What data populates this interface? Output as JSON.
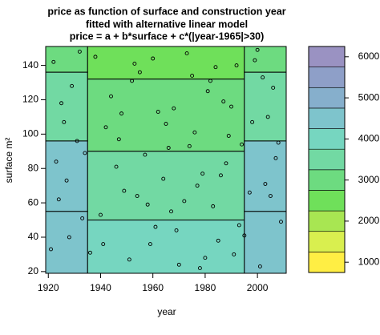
{
  "chart_data": {
    "type": "filled-contour",
    "title": "price as function of surface and construction year",
    "subtitle": "fitted with alternative linear model",
    "formula": "price = a + b*surface + c*(|year-1965|>30)",
    "x_label": "year",
    "y_label": "surface m²",
    "xlim": [
      1919,
      2011
    ],
    "xticks": [
      1920,
      1940,
      1960,
      1980,
      2000
    ],
    "ylim": [
      19,
      151
    ],
    "yticks": [
      20,
      40,
      60,
      80,
      100,
      120,
      140
    ],
    "levels": [
      750,
      1250,
      1750,
      2250,
      2750,
      3250,
      3750,
      4250,
      4750,
      5250,
      5750,
      6250
    ],
    "level_colors": [
      "#ffee44",
      "#d9ef4f",
      "#a8e652",
      "#6fe05a",
      "#6ddb80",
      "#72d9a3",
      "#76d6c0",
      "#7ec4cc",
      "#86afcc",
      "#8e9fc8",
      "#9a92c2"
    ],
    "colorbar_ticks": [
      1000,
      2000,
      3000,
      4000,
      5000,
      6000
    ],
    "regions": [
      {
        "x": [
          1935,
          1995
        ],
        "y": [
          132,
          151
        ],
        "level": 2400
      },
      {
        "x": [
          1935,
          1995
        ],
        "y": [
          90,
          132
        ],
        "level": 3000
      },
      {
        "x": [
          1935,
          1995
        ],
        "y": [
          50,
          90
        ],
        "level": 3500
      },
      {
        "x": [
          1935,
          1995
        ],
        "y": [
          19,
          50
        ],
        "level": 3900
      },
      {
        "x": [
          1919,
          1935
        ],
        "y": [
          136,
          151
        ],
        "level": 3100
      },
      {
        "x": [
          1919,
          1935
        ],
        "y": [
          96,
          136
        ],
        "level": 3700
      },
      {
        "x": [
          1919,
          1935
        ],
        "y": [
          55,
          96
        ],
        "level": 4300
      },
      {
        "x": [
          1919,
          1935
        ],
        "y": [
          19,
          55
        ],
        "level": 4700
      },
      {
        "x": [
          1995,
          2011
        ],
        "y": [
          136,
          151
        ],
        "level": 3100
      },
      {
        "x": [
          1995,
          2011
        ],
        "y": [
          96,
          136
        ],
        "level": 3700
      },
      {
        "x": [
          1995,
          2011
        ],
        "y": [
          55,
          96
        ],
        "level": 4300
      },
      {
        "x": [
          1995,
          2011
        ],
        "y": [
          19,
          55
        ],
        "level": 4700
      }
    ],
    "points": {
      "x": [
        1922,
        1925,
        1931,
        1927,
        1933,
        1921,
        1929,
        1924,
        1938,
        1942,
        1946,
        1951,
        1955,
        1958,
        1962,
        1966,
        1969,
        1973,
        1977,
        1981,
        1985,
        1989,
        1992,
        1997,
        2001,
        2004,
        2007,
        2009,
        1936,
        1944,
        1949,
        1953,
        1957,
        1961,
        1965,
        1970,
        1975,
        1979,
        1983,
        1987,
        1991,
        1994,
        1999,
        2003,
        2006,
        1923,
        1928,
        1932,
        1940,
        1947,
        1952,
        1959,
        1964,
        1968,
        1972,
        1976,
        1980,
        1984,
        1988,
        1993,
        1998,
        2002,
        2005,
        2008,
        1926,
        1934,
        1941,
        1948,
        1954,
        1960,
        1967,
        1974,
        1978,
        1982,
        1986,
        1990,
        1995,
        2000
      ],
      "y": [
        142,
        118,
        96,
        73,
        51,
        33,
        128,
        62,
        145,
        104,
        81,
        27,
        136,
        59,
        113,
        92,
        44,
        147,
        70,
        125,
        38,
        99,
        140,
        66,
        23,
        110,
        86,
        49,
        31,
        122,
        67,
        141,
        88,
        46,
        106,
        24,
        134,
        77,
        58,
        119,
        30,
        94,
        143,
        71,
        127,
        84,
        40,
        148,
        53,
        97,
        131,
        36,
        74,
        115,
        61,
        101,
        28,
        139,
        83,
        47,
        107,
        133,
        64,
        95,
        107,
        89,
        36,
        112,
        64,
        144,
        55,
        93,
        22,
        131,
        76,
        116,
        41,
        149
      ]
    }
  }
}
